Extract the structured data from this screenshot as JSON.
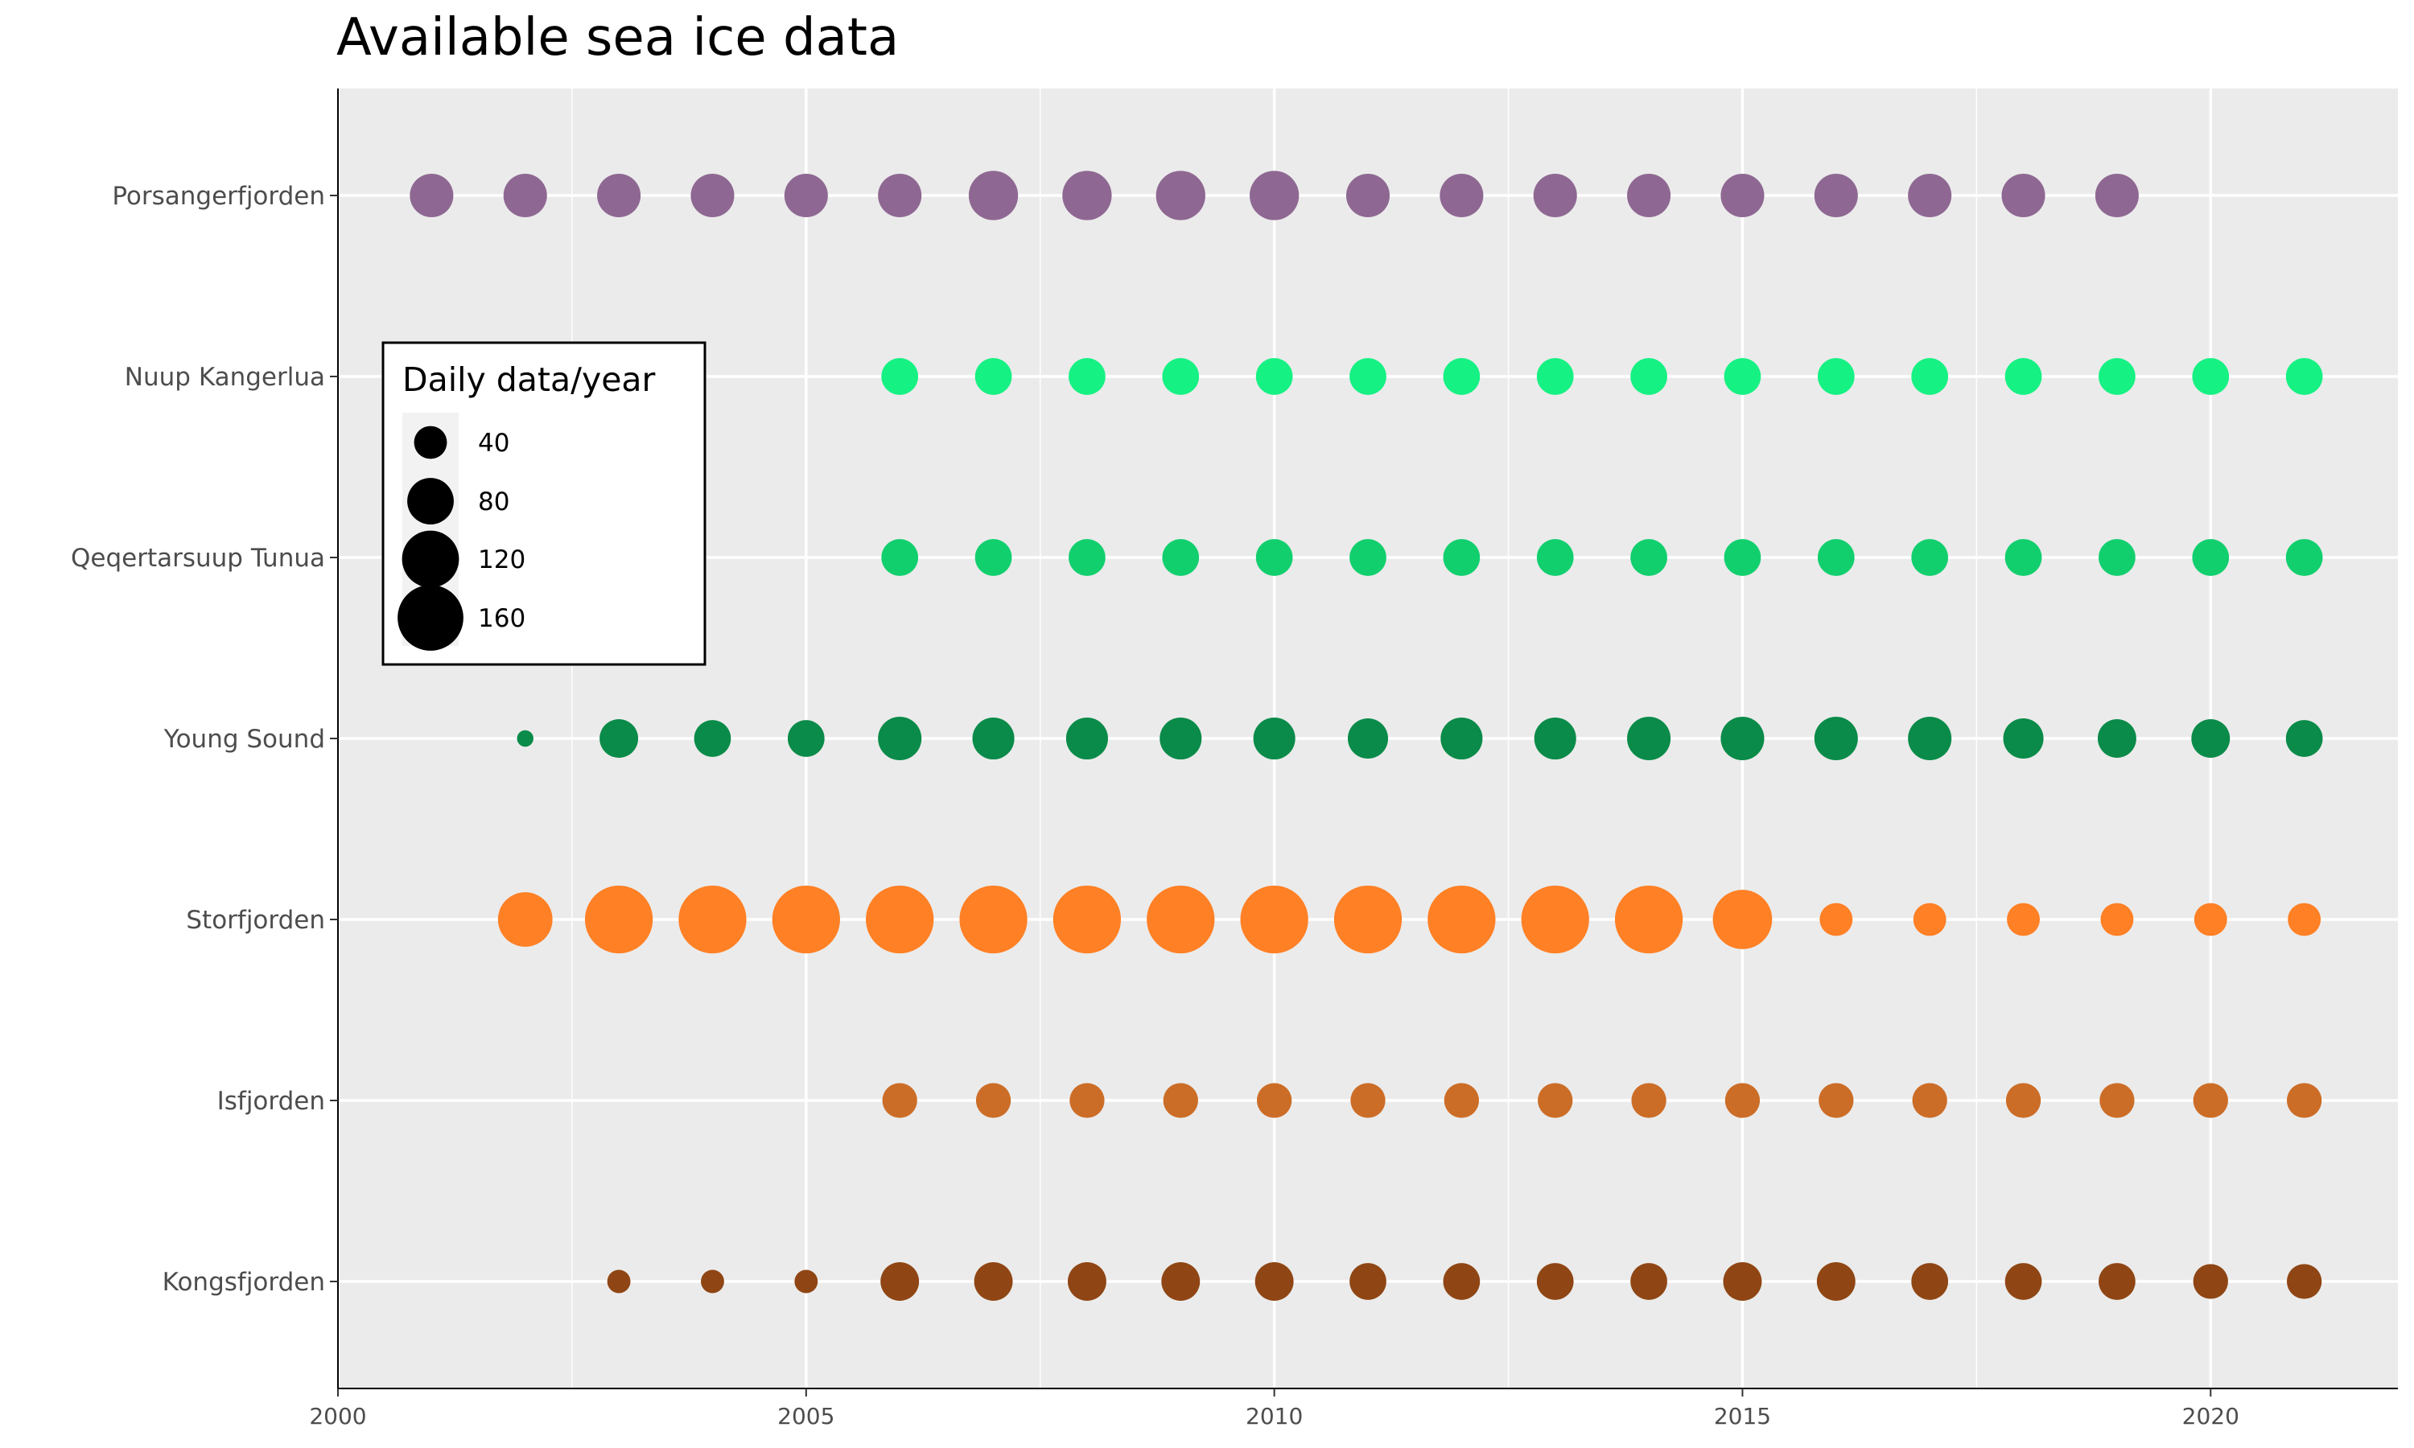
{
  "chart_data": {
    "type": "scatter",
    "title": "Available sea ice data",
    "xlabel": "",
    "ylabel": "",
    "xlim": [
      2000,
      2022
    ],
    "x_ticks": [
      "2000",
      "2005",
      "2010",
      "2015",
      "2020"
    ],
    "x_tick_values": [
      2000,
      2005,
      2010,
      2015,
      2020
    ],
    "grid": true,
    "legend": {
      "title": "Daily data/year",
      "placement": "inside-top-left",
      "entries": [
        {
          "label": "40",
          "value": 40
        },
        {
          "label": "80",
          "value": 80
        },
        {
          "label": "120",
          "value": 120
        },
        {
          "label": "160",
          "value": 160
        }
      ]
    },
    "series": [
      {
        "name": "Porsangerfjorden",
        "color": "#8e6892",
        "years": [
          2001,
          2002,
          2003,
          2004,
          2005,
          2006,
          2007,
          2008,
          2009,
          2010,
          2011,
          2012,
          2013,
          2014,
          2015,
          2016,
          2017,
          2018,
          2019
        ],
        "values": [
          70,
          70,
          70,
          70,
          70,
          70,
          90,
          90,
          90,
          90,
          70,
          70,
          70,
          70,
          70,
          70,
          70,
          70,
          70
        ]
      },
      {
        "name": "Nuup Kangerlua",
        "color": "#16f183",
        "years": [
          2006,
          2007,
          2008,
          2009,
          2010,
          2011,
          2012,
          2013,
          2014,
          2015,
          2016,
          2017,
          2018,
          2019,
          2020,
          2021
        ],
        "values": [
          50,
          50,
          50,
          50,
          50,
          50,
          50,
          50,
          50,
          50,
          50,
          50,
          50,
          50,
          50,
          50
        ]
      },
      {
        "name": "Qeqertarsuup Tunua",
        "color": "#12cf6e",
        "years": [
          2006,
          2007,
          2008,
          2009,
          2010,
          2011,
          2012,
          2013,
          2014,
          2015,
          2016,
          2017,
          2018,
          2019,
          2020,
          2021
        ],
        "values": [
          50,
          50,
          50,
          50,
          50,
          50,
          50,
          50,
          50,
          50,
          50,
          50,
          50,
          50,
          50,
          50
        ]
      },
      {
        "name": "Young Sound",
        "color": "#0a8b49",
        "years": [
          2002,
          2003,
          2004,
          2005,
          2006,
          2007,
          2008,
          2009,
          2010,
          2011,
          2012,
          2013,
          2014,
          2015,
          2016,
          2017,
          2018,
          2019,
          2020,
          2021
        ],
        "values": [
          10,
          55,
          50,
          50,
          70,
          65,
          65,
          65,
          65,
          60,
          65,
          65,
          70,
          70,
          70,
          70,
          60,
          55,
          55,
          50
        ]
      },
      {
        "name": "Storfjorden",
        "color": "#ff8025",
        "years": [
          2002,
          2003,
          2004,
          2005,
          2006,
          2007,
          2008,
          2009,
          2010,
          2011,
          2012,
          2013,
          2014,
          2015,
          2016,
          2017,
          2018,
          2019,
          2020,
          2021
        ],
        "values": [
          110,
          170,
          170,
          170,
          170,
          170,
          170,
          170,
          170,
          170,
          170,
          170,
          170,
          130,
          40,
          40,
          40,
          40,
          40,
          40
        ]
      },
      {
        "name": "Isfjorden",
        "color": "#cc6d27",
        "years": [
          2006,
          2007,
          2008,
          2009,
          2010,
          2011,
          2012,
          2013,
          2014,
          2015,
          2016,
          2017,
          2018,
          2019,
          2020,
          2021
        ],
        "values": [
          45,
          45,
          45,
          45,
          45,
          45,
          45,
          45,
          45,
          45,
          45,
          45,
          45,
          45,
          45,
          45
        ]
      },
      {
        "name": "Kongsfjorden",
        "color": "#8f4614",
        "years": [
          2003,
          2004,
          2005,
          2006,
          2007,
          2008,
          2009,
          2010,
          2011,
          2012,
          2013,
          2014,
          2015,
          2016,
          2017,
          2018,
          2019,
          2020,
          2021
        ],
        "values": [
          20,
          20,
          20,
          55,
          55,
          55,
          55,
          55,
          50,
          50,
          50,
          50,
          55,
          55,
          50,
          50,
          50,
          45,
          45
        ]
      }
    ]
  }
}
